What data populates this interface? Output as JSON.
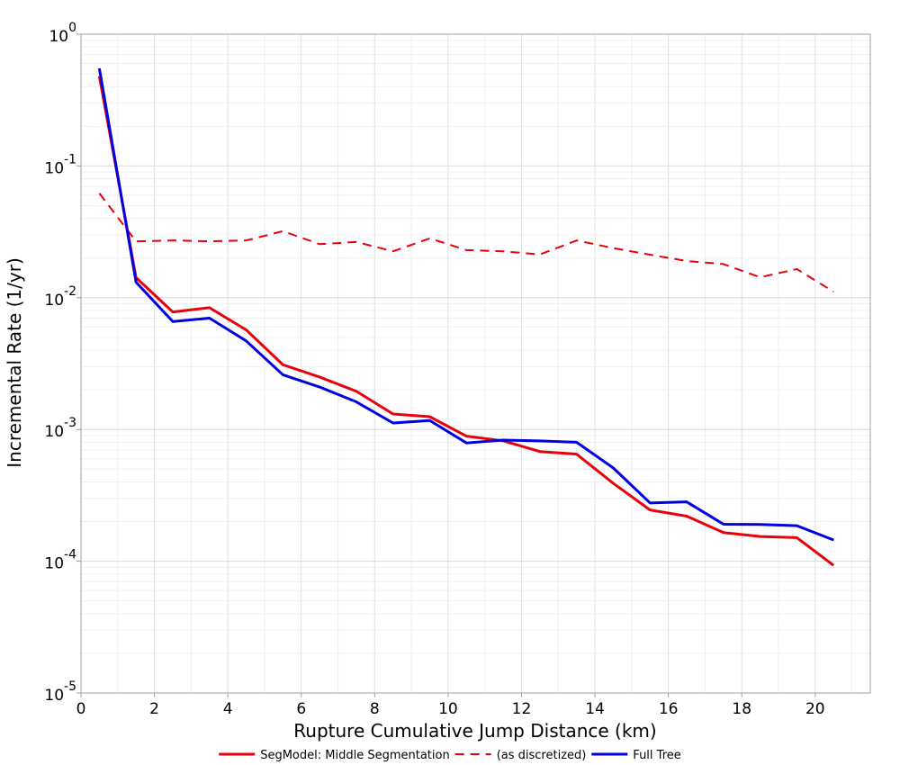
{
  "chart_data": {
    "type": "line",
    "xlabel": "Rupture Cumulative Jump Distance (km)",
    "ylabel": "Incremental Rate (1/yr)",
    "xlim": [
      0,
      21.5
    ],
    "ylim": [
      1e-05,
      1
    ],
    "y_scale": "log",
    "grid": true,
    "legend_position": "bottom",
    "x_ticks": [
      "0",
      "2",
      "4",
      "6",
      "8",
      "10",
      "12",
      "14",
      "16",
      "18",
      "20"
    ],
    "y_ticks": [
      {
        "base": "10",
        "exp": "0"
      },
      {
        "base": "10",
        "exp": "-1"
      },
      {
        "base": "10",
        "exp": "-2"
      },
      {
        "base": "10",
        "exp": "-3"
      },
      {
        "base": "10",
        "exp": "-4"
      },
      {
        "base": "10",
        "exp": "-5"
      }
    ],
    "series": [
      {
        "name": "SegModel: Middle Segmentation",
        "color": "#e8000b",
        "style": "solid",
        "x": [
          0.5,
          1.5,
          2.5,
          3.5,
          4.5,
          5.5,
          6.5,
          7.5,
          8.5,
          9.5,
          10.5,
          11.5,
          12.5,
          13.5,
          14.5,
          15.5,
          16.5,
          17.5,
          18.5,
          19.5,
          20.5
        ],
        "y": [
          0.48,
          0.0142,
          0.0078,
          0.0084,
          0.0057,
          0.0031,
          0.0025,
          0.00195,
          0.00131,
          0.00125,
          0.00089,
          0.00082,
          0.00068,
          0.00065,
          0.00039,
          0.000245,
          0.00022,
          0.000165,
          0.000154,
          0.000151,
          9.3e-05
        ]
      },
      {
        "name": "(as discretized)",
        "color": "#e8000b",
        "style": "dashed",
        "x": [
          0.5,
          1.5,
          2.5,
          3.5,
          4.5,
          5.5,
          6.5,
          7.5,
          8.5,
          9.5,
          10.5,
          11.5,
          12.5,
          13.5,
          14.5,
          15.5,
          16.5,
          17.5,
          18.5,
          19.5,
          20.5
        ],
        "y": [
          0.062,
          0.0268,
          0.0272,
          0.0268,
          0.0272,
          0.032,
          0.0255,
          0.0265,
          0.0225,
          0.0282,
          0.023,
          0.0225,
          0.0213,
          0.0272,
          0.0238,
          0.0212,
          0.019,
          0.018,
          0.0143,
          0.0165,
          0.0111
        ]
      },
      {
        "name": "Full Tree",
        "color": "#0000e0",
        "style": "solid",
        "x": [
          0.5,
          1.5,
          2.5,
          3.5,
          4.5,
          5.5,
          6.5,
          7.5,
          8.5,
          9.5,
          10.5,
          11.5,
          12.5,
          13.5,
          14.5,
          15.5,
          16.5,
          17.5,
          18.5,
          19.5,
          20.5
        ],
        "y": [
          0.55,
          0.0131,
          0.0066,
          0.007,
          0.0047,
          0.0026,
          0.0021,
          0.00162,
          0.00112,
          0.00117,
          0.00079,
          0.00083,
          0.00082,
          0.0008,
          0.00051,
          0.000277,
          0.000282,
          0.000191,
          0.00019,
          0.000186,
          0.000145
        ]
      }
    ]
  }
}
